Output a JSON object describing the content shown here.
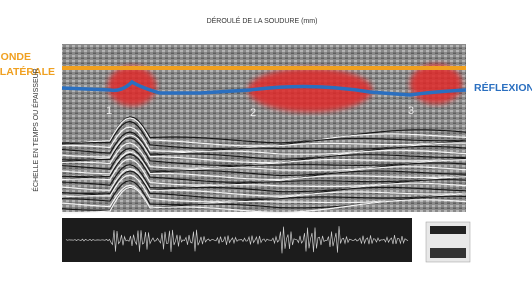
{
  "header": {
    "title": "DÉROULÉ DE LA SOUDURE (mm)"
  },
  "labels": {
    "lateral_wave": [
      "ONDE",
      "LATÉRALE"
    ],
    "reflection": "RÉFLEXION",
    "vertical_axis": "ÉCHELLE EN TEMPS OU ÉPAISSEUR"
  },
  "defects": [
    "1",
    "2",
    "3"
  ]
}
